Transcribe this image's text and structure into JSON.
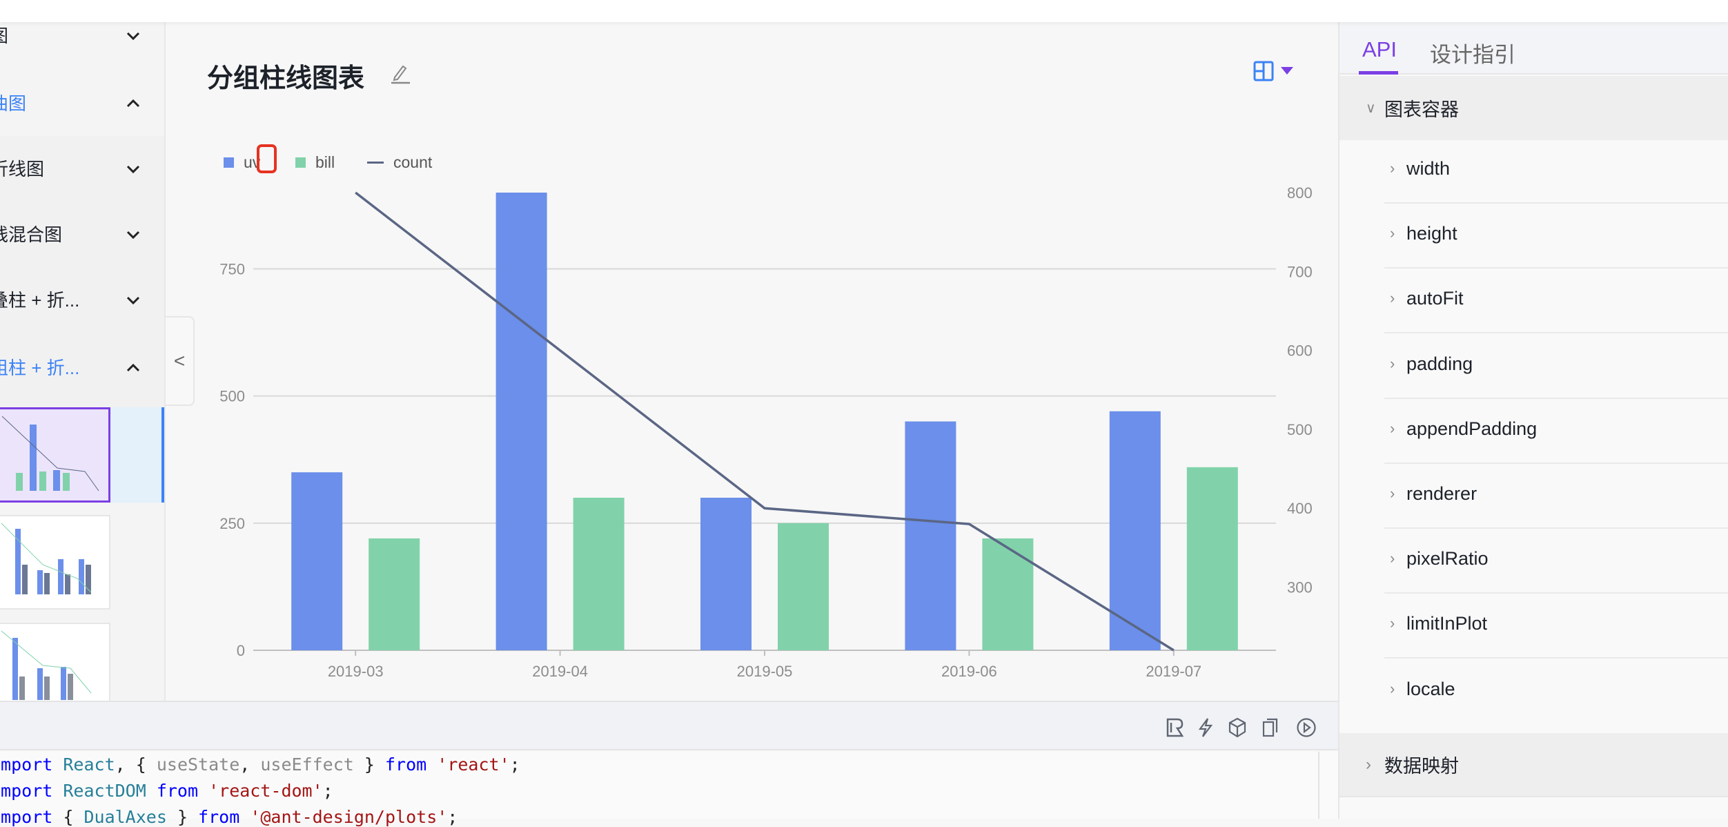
{
  "sidebar": {
    "items": [
      {
        "label": "图",
        "chevron": "chevron-down",
        "active": false
      },
      {
        "label": "曲图",
        "chevron": "chevron-up",
        "active": true
      },
      {
        "label": "折线图",
        "chevron": "chevron-down",
        "active": false
      },
      {
        "label": "线混合图",
        "chevron": "chevron-down",
        "active": false
      },
      {
        "label": "叠柱 + 折...",
        "chevron": "chevron-down",
        "active": false
      },
      {
        "label": "组柱 + 折...",
        "chevron": "chevron-up",
        "active": true
      }
    ],
    "collapse_icon": "<"
  },
  "main": {
    "title": "分组柱线图表"
  },
  "chart_data": {
    "type": "bar",
    "title": "分组柱线图表",
    "categories": [
      "2019-03",
      "2019-04",
      "2019-05",
      "2019-06",
      "2019-07"
    ],
    "series": [
      {
        "name": "uv",
        "type": "bar",
        "axis": "left",
        "color": "#6b8fea",
        "values": [
          350,
          900,
          300,
          450,
          470
        ]
      },
      {
        "name": "bill",
        "type": "bar",
        "axis": "left",
        "color": "#81d2aa",
        "values": [
          220,
          300,
          250,
          220,
          360
        ]
      },
      {
        "name": "count",
        "type": "line",
        "axis": "right",
        "color": "#5b6685",
        "values": [
          800,
          600,
          400,
          380,
          220
        ]
      }
    ],
    "left_axis": {
      "ylim": [
        0,
        900
      ],
      "ticks": [
        0,
        250,
        500,
        750
      ]
    },
    "right_axis": {
      "ylim": [
        220,
        800
      ],
      "ticks": [
        300,
        400,
        500,
        600,
        700,
        800
      ]
    },
    "legend_placement": "top-left",
    "grid": true
  },
  "code": {
    "lines": [
      [
        [
          "kw",
          "import"
        ],
        [
          "id",
          " React"
        ],
        [
          "pl",
          ", { "
        ],
        [
          "dim",
          "useState"
        ],
        [
          "pl",
          ", "
        ],
        [
          "dim",
          "useEffect"
        ],
        [
          "pl",
          " } "
        ],
        [
          "kw",
          "from"
        ],
        [
          "str",
          " 'react'"
        ],
        [
          "pl",
          ";"
        ]
      ],
      [
        [
          "kw",
          "import"
        ],
        [
          "id",
          " ReactDOM"
        ],
        [
          "kw",
          " from"
        ],
        [
          "str",
          " 'react-dom'"
        ],
        [
          "pl",
          ";"
        ]
      ],
      [
        [
          "kw",
          "import"
        ],
        [
          "pl",
          " { "
        ],
        [
          "id",
          "DualAxes"
        ],
        [
          "pl",
          " } "
        ],
        [
          "kw",
          "from"
        ],
        [
          "str",
          " '@ant-design/plots'"
        ],
        [
          "pl",
          ";"
        ]
      ]
    ]
  },
  "rpanel": {
    "tabs": [
      {
        "label": "API",
        "active": true
      },
      {
        "label": "设计指引",
        "active": false
      }
    ],
    "section1": "图表容器",
    "items": [
      "width",
      "height",
      "autoFit",
      "padding",
      "appendPadding",
      "renderer",
      "pixelRatio",
      "limitInPlot",
      "locale"
    ],
    "section2": "数据映射"
  },
  "colors": {
    "accent": "#7b3fe4",
    "link": "#3b82f6"
  }
}
